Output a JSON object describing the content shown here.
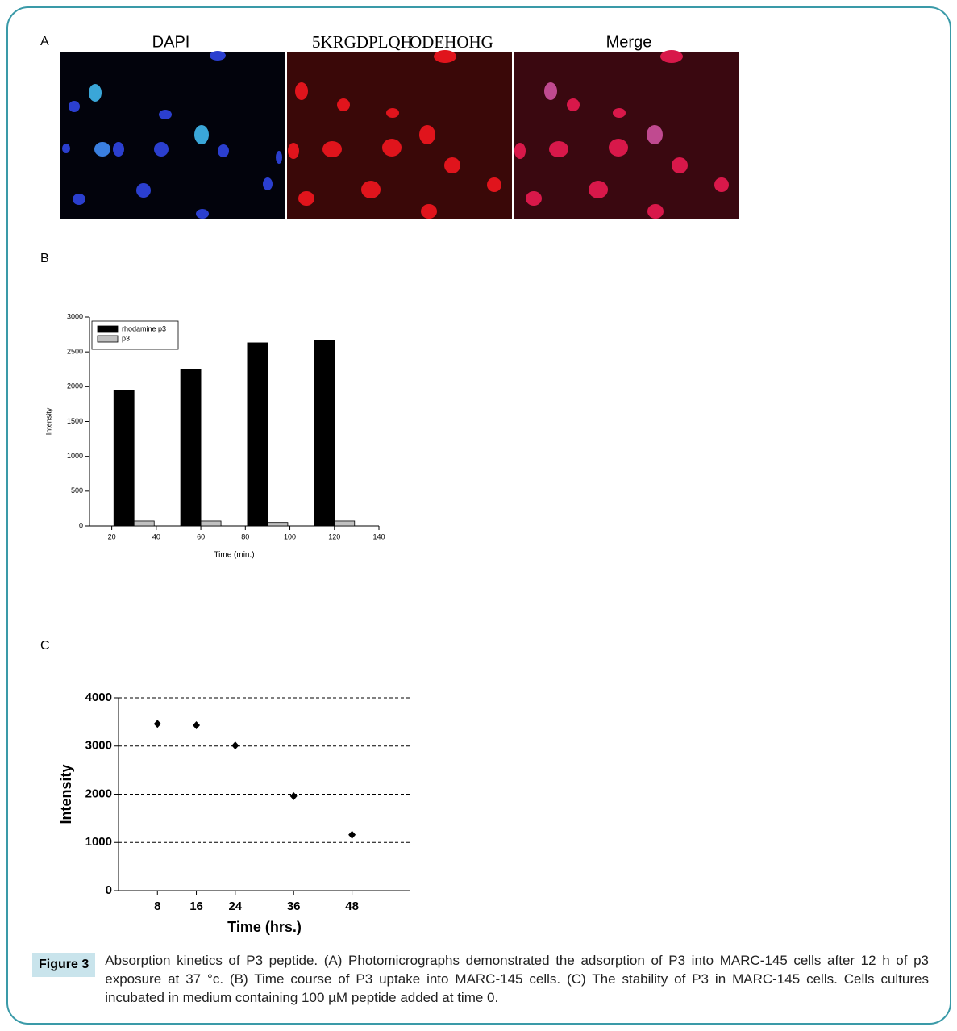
{
  "panel_labels": [
    "A",
    "B",
    "C"
  ],
  "micrographs": [
    {
      "title": "DAPI"
    },
    {
      "title": [
        "5KRGDPLQH",
        "ODEHOHG"
      ]
    },
    {
      "title": "Merge"
    }
  ],
  "chart_data": [
    {
      "type": "bar",
      "x_label": "Time (min.)",
      "y_label": "Intensity",
      "x": [
        30,
        60,
        90,
        120
      ],
      "series": [
        {
          "name": "rhodamine p3",
          "color": "#000000",
          "values": [
            1950,
            2250,
            2630,
            2660
          ]
        },
        {
          "name": "p3",
          "color": "#c0c0c0",
          "values": [
            70,
            70,
            50,
            70
          ]
        }
      ],
      "xlim": [
        10,
        140
      ],
      "xticks": [
        20,
        40,
        60,
        80,
        100,
        120,
        140
      ],
      "ylim": [
        0,
        3000
      ],
      "yticks": [
        0,
        500,
        1000,
        1500,
        2000,
        2500,
        3000
      ],
      "legend": "top-left",
      "grid": false
    },
    {
      "type": "scatter",
      "x_label": "Time (hrs.)",
      "y_label": "Intensity",
      "x": [
        8,
        16,
        24,
        36,
        48
      ],
      "values": [
        3460,
        3430,
        3010,
        1960,
        1160
      ],
      "color": "#000000",
      "xlim": [
        0,
        60
      ],
      "xticks": [
        8,
        16,
        24,
        36,
        48
      ],
      "ylim": [
        0,
        4000
      ],
      "yticks": [
        0,
        1000,
        2000,
        3000,
        4000
      ],
      "grid": true
    }
  ],
  "caption": {
    "label": "Figure 3",
    "text": "Absorption kinetics of P3 peptide. (A) Photomicrographs demonstrated the adsorption of P3 into MARC-145 cells after 12 h of p3 exposure at 37 °c. (B) Time course of P3 uptake into MARC-145 cells. (C) The stability of P3 in MARC-145 cells. Cells cultures incubated in medium containing 100 µM peptide added at time 0."
  }
}
